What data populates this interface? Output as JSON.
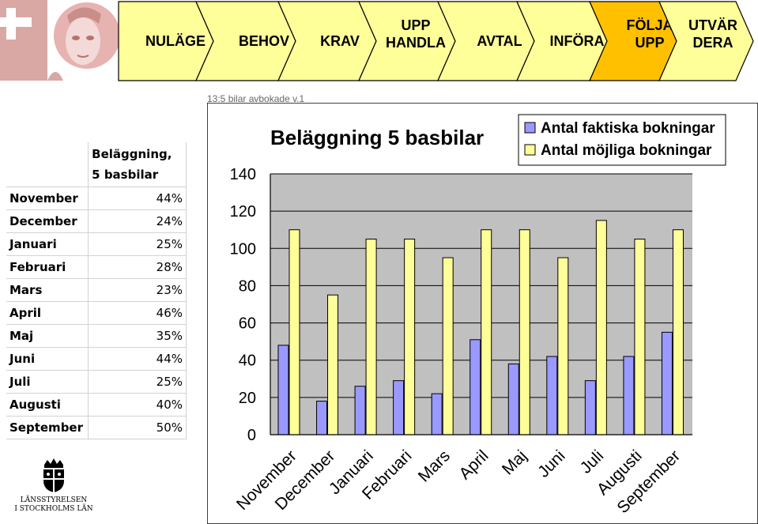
{
  "process": {
    "steps": [
      {
        "label": "NULÄGE",
        "active": false
      },
      {
        "label": "BEHOV",
        "active": false
      },
      {
        "label": "KRAV",
        "active": false
      },
      {
        "label": "UPP\nHANDLA",
        "active": false
      },
      {
        "label": "AVTAL",
        "active": false
      },
      {
        "label": "INFÖRA",
        "active": false
      },
      {
        "label": "FÖLJA\nUPP",
        "active": true
      },
      {
        "label": "UTVÄR\nDERA",
        "active": false
      }
    ],
    "colors": {
      "step": "#ffff99",
      "active": "#ffc000",
      "border": "#000000"
    }
  },
  "background_text": "13:5 bilar avbokade v.1",
  "table": {
    "header": "Beläggning,\n5 basbilar",
    "rows": [
      {
        "month": "November",
        "value": "44%"
      },
      {
        "month": "December",
        "value": "24%"
      },
      {
        "month": "Januari",
        "value": "25%"
      },
      {
        "month": "Februari",
        "value": "28%"
      },
      {
        "month": "Mars",
        "value": "23%"
      },
      {
        "month": "April",
        "value": "46%"
      },
      {
        "month": "Maj",
        "value": "35%"
      },
      {
        "month": "Juni",
        "value": "44%"
      },
      {
        "month": "Juli",
        "value": "25%"
      },
      {
        "month": "Augusti",
        "value": "40%"
      },
      {
        "month": "September",
        "value": "50%"
      }
    ]
  },
  "chart_data": {
    "type": "bar",
    "title": "Beläggning 5 basbilar",
    "categories": [
      "November",
      "December",
      "Januari",
      "Februari",
      "Mars",
      "April",
      "Maj",
      "Juni",
      "Juli",
      "Augusti",
      "September"
    ],
    "series": [
      {
        "name": "Antal faktiska bokningar",
        "color": "#9999ff",
        "values": [
          48,
          18,
          26,
          29,
          22,
          51,
          38,
          42,
          29,
          42,
          55
        ]
      },
      {
        "name": "Antal möjliga bokningar",
        "color": "#ffff99",
        "values": [
          110,
          75,
          105,
          105,
          95,
          110,
          110,
          95,
          115,
          105,
          110
        ]
      }
    ],
    "ylim": [
      0,
      140
    ],
    "yticks": [
      0,
      20,
      40,
      60,
      80,
      100,
      120,
      140
    ],
    "grid": true,
    "plot_background": "#c0c0c0",
    "legend_position": "top-right"
  },
  "org": {
    "line1": "LÄNSSTYRELSEN",
    "line2": "I STOCKHOLMS LÄN"
  }
}
